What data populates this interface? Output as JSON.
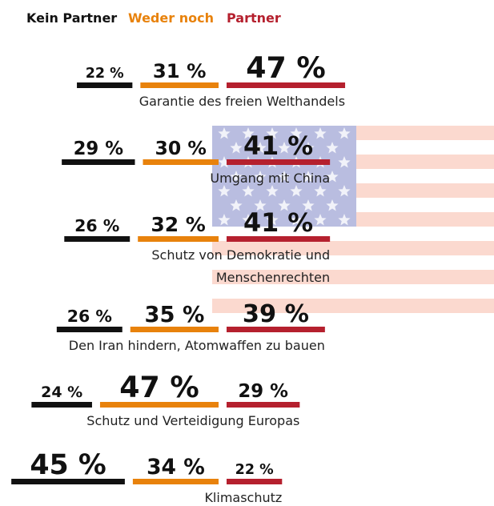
{
  "chart_data": {
    "type": "bar",
    "categories": [
      [
        "Garantie des freien Welthandels"
      ],
      [
        "Umgang mit China"
      ],
      [
        "Schutz von Demokratie und",
        "Menschenrechten"
      ],
      [
        "Den Iran hindern, Atomwaffen zu bauen"
      ],
      [
        "Schutz und Verteidigung Europas"
      ],
      [
        "Klimaschutz"
      ]
    ],
    "series": [
      {
        "name": "Kein Partner",
        "color": "#111111",
        "values": [
          22,
          29,
          26,
          26,
          24,
          45
        ],
        "value_labels": [
          "22 %",
          "29 %",
          "26 %",
          "26 %",
          "24 %",
          "45 %"
        ]
      },
      {
        "name": "Weder noch",
        "color": "#e8820c",
        "values": [
          31,
          30,
          32,
          35,
          47,
          34
        ],
        "value_labels": [
          "31 %",
          "30 %",
          "32 %",
          "35 %",
          "47 %",
          "34 %"
        ]
      },
      {
        "name": "Partner",
        "color": "#b5202e",
        "values": [
          47,
          41,
          41,
          39,
          29,
          22
        ],
        "value_labels": [
          "47 %",
          "41 %",
          "41 %",
          "39 %",
          "29 %",
          "22 %"
        ]
      }
    ]
  }
}
